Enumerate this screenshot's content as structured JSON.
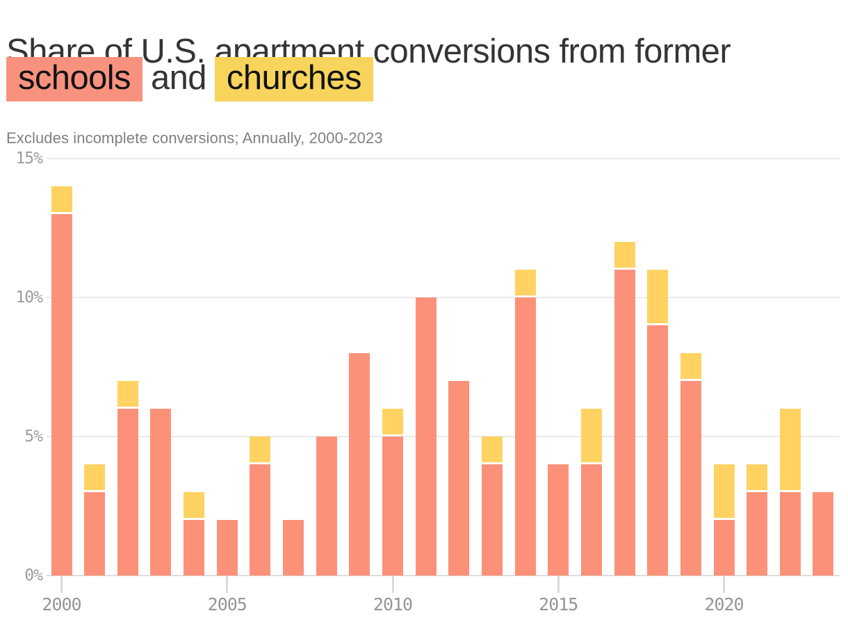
{
  "title": {
    "prefix": "Share of U.S. apartment conversions from former",
    "highlight_schools": "schools",
    "connector": "and",
    "highlight_churches": "churches"
  },
  "subtitle": "Excludes incomplete conversions; Annually, 2000-2023",
  "colors": {
    "schools_bar": "#fc9179",
    "churches_bar": "#ffd262",
    "schools_chip": "#f8927e",
    "churches_chip": "#f8d45c",
    "gridline": "#e9e9e8",
    "baseline": "#dddddc",
    "y_axis_text": "#9b9c9e",
    "x_axis_text": "#949598",
    "title_text": "#343438",
    "subtitle_text": "#7e8084"
  },
  "chart_data": {
    "type": "bar",
    "stacked": true,
    "title": "Share of U.S. apartment conversions from former schools and churches",
    "subtitle": "Excludes incomplete conversions; Annually, 2000-2023",
    "unit": "%",
    "categories": [
      2000,
      2001,
      2002,
      2003,
      2004,
      2005,
      2006,
      2007,
      2008,
      2009,
      2010,
      2011,
      2012,
      2013,
      2014,
      2015,
      2016,
      2017,
      2018,
      2019,
      2020,
      2021,
      2022,
      2023
    ],
    "series": [
      {
        "name": "schools",
        "color": "#fc9179",
        "values": [
          13,
          3,
          6,
          6,
          2,
          2,
          4,
          2,
          5,
          8,
          5,
          10,
          7,
          4,
          10,
          4,
          4,
          11,
          9,
          7,
          2,
          3,
          3,
          3
        ]
      },
      {
        "name": "churches",
        "color": "#ffd262",
        "values": [
          1,
          1,
          1,
          0,
          1,
          0,
          1,
          0,
          0,
          0,
          1,
          0,
          0,
          1,
          1,
          0,
          2,
          1,
          2,
          1,
          2,
          1,
          3,
          0
        ]
      }
    ],
    "totals": [
      14,
      4,
      7,
      6,
      3,
      2,
      5,
      2,
      5,
      8,
      6,
      10,
      7,
      5,
      11,
      4,
      6,
      12,
      11,
      8,
      4,
      4,
      6,
      3
    ],
    "xlabel": "",
    "ylabel": "",
    "ylim": [
      0,
      15
    ],
    "ytick_values": [
      0,
      5,
      10,
      15
    ],
    "ytick_labels": [
      "0%",
      "5%",
      "10%",
      "15%"
    ],
    "xtick_values": [
      2000,
      2005,
      2010,
      2015,
      2020
    ],
    "grid": true,
    "legend_position": "in-title"
  }
}
